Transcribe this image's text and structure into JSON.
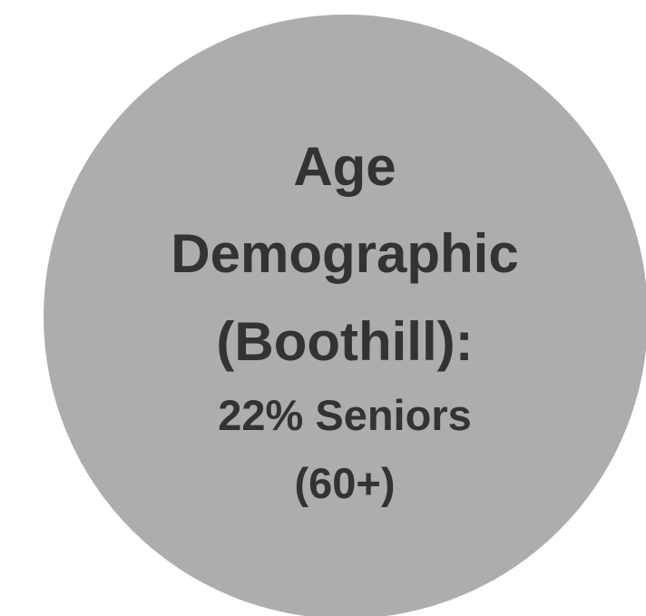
{
  "badge": {
    "title_lines": [
      "Age",
      "Demographic",
      "(Boothill):"
    ],
    "stat_lines": [
      "22% Seniors",
      "(60+)"
    ],
    "colors": {
      "circle": "#adadad",
      "text": "#333333",
      "background": "#ffffff"
    }
  }
}
